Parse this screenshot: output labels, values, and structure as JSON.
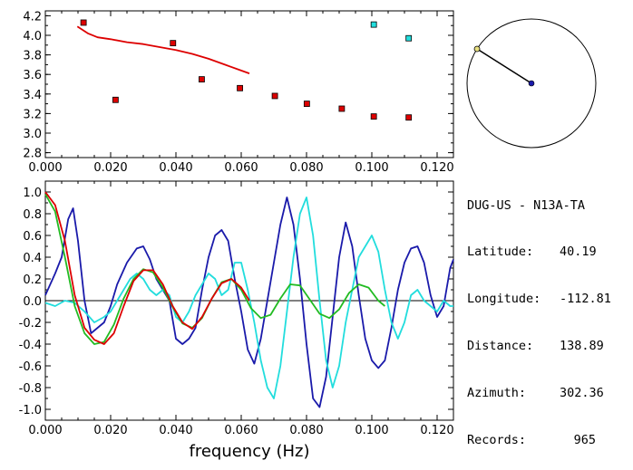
{
  "colors": {
    "red": "#dd0000",
    "blue": "#1a1aaa",
    "cyan": "#22dddd",
    "green": "#22bb22",
    "black": "#000000"
  },
  "station": {
    "title": "DUG-US - N13A-TA",
    "fields": [
      {
        "key": "Latitude:",
        "value": "40.19"
      },
      {
        "key": "Longitude:",
        "value": "-112.81"
      },
      {
        "key": "Distance:",
        "value": "138.89"
      },
      {
        "key": "Azimuth:",
        "value": "302.36"
      },
      {
        "key": "Records:",
        "value": "965"
      }
    ]
  },
  "azimuth_deg": 302.36,
  "chart_data": [
    {
      "type": "scatter",
      "xlim": [
        0.0,
        0.125
      ],
      "ylim": [
        2.75,
        4.25
      ],
      "xticks": [
        "0.000",
        "0.020",
        "0.040",
        "0.060",
        "0.080",
        "0.100",
        "0.120"
      ],
      "yticks": [
        "2.8",
        "3.0",
        "3.2",
        "3.4",
        "3.6",
        "3.8",
        "4.0",
        "4.2"
      ],
      "series": [
        {
          "color": "#dd0000",
          "marker": "square",
          "x": [
            0.0117,
            0.0215,
            0.0391,
            0.0479,
            0.0596,
            0.0703,
            0.0801,
            0.0908,
            0.1006,
            0.1113
          ],
          "y": [
            4.13,
            3.34,
            3.92,
            3.55,
            3.46,
            3.38,
            3.3,
            3.25,
            3.17,
            3.16
          ]
        },
        {
          "color": "#22dddd",
          "marker": "square",
          "x": [
            0.1006,
            0.1113
          ],
          "y": [
            4.11,
            3.97
          ]
        },
        {
          "color": "#dd0000",
          "marker": "line",
          "x": [
            0.0098,
            0.013,
            0.016,
            0.02,
            0.025,
            0.03,
            0.035,
            0.04,
            0.045,
            0.05,
            0.055,
            0.06,
            0.0625
          ],
          "y": [
            4.09,
            4.02,
            3.98,
            3.96,
            3.93,
            3.91,
            3.88,
            3.85,
            3.81,
            3.76,
            3.7,
            3.64,
            3.61
          ]
        }
      ]
    },
    {
      "type": "line",
      "xlabel": "frequency (Hz)",
      "xlim": [
        0.0,
        0.125
      ],
      "ylim": [
        -1.1,
        1.1
      ],
      "xticks": [
        "0.000",
        "0.020",
        "0.040",
        "0.060",
        "0.080",
        "0.100",
        "0.120"
      ],
      "yticks": [
        "1.0",
        "0.8",
        "0.6",
        "0.4",
        "0.2",
        "0.0",
        "-0.2",
        "-0.4",
        "-0.6",
        "-0.8",
        "-1.0"
      ],
      "series": [
        {
          "color": "#000000",
          "x": [
            0.0,
            0.125
          ],
          "y": [
            0.0,
            0.0
          ]
        },
        {
          "color": "#1a1aaa",
          "x": [
            0.0,
            0.003,
            0.005,
            0.007,
            0.0085,
            0.01,
            0.012,
            0.014,
            0.016,
            0.018,
            0.02,
            0.022,
            0.025,
            0.028,
            0.03,
            0.032,
            0.034,
            0.036,
            0.038,
            0.04,
            0.042,
            0.044,
            0.046,
            0.048,
            0.05,
            0.052,
            0.054,
            0.056,
            0.058,
            0.06,
            0.062,
            0.064,
            0.066,
            0.068,
            0.07,
            0.072,
            0.074,
            0.076,
            0.078,
            0.08,
            0.082,
            0.084,
            0.086,
            0.088,
            0.09,
            0.092,
            0.094,
            0.096,
            0.098,
            0.1,
            0.102,
            0.104,
            0.106,
            0.108,
            0.11,
            0.112,
            0.114,
            0.116,
            0.118,
            0.12,
            0.122,
            0.124,
            0.125
          ],
          "y": [
            0.05,
            0.25,
            0.4,
            0.75,
            0.85,
            0.55,
            0.0,
            -0.3,
            -0.25,
            -0.2,
            -0.05,
            0.15,
            0.35,
            0.48,
            0.5,
            0.38,
            0.2,
            0.1,
            0.0,
            -0.35,
            -0.4,
            -0.35,
            -0.25,
            0.1,
            0.4,
            0.6,
            0.65,
            0.55,
            0.2,
            -0.1,
            -0.45,
            -0.58,
            -0.35,
            0.0,
            0.35,
            0.7,
            0.95,
            0.7,
            0.2,
            -0.4,
            -0.9,
            -0.98,
            -0.7,
            -0.15,
            0.4,
            0.72,
            0.5,
            0.05,
            -0.35,
            -0.55,
            -0.62,
            -0.55,
            -0.25,
            0.1,
            0.35,
            0.48,
            0.5,
            0.35,
            0.05,
            -0.15,
            -0.05,
            0.3,
            0.38
          ]
        },
        {
          "color": "#22dddd",
          "x": [
            0.0,
            0.003,
            0.006,
            0.009,
            0.012,
            0.015,
            0.018,
            0.02,
            0.022,
            0.024,
            0.026,
            0.028,
            0.03,
            0.032,
            0.034,
            0.036,
            0.038,
            0.04,
            0.042,
            0.044,
            0.046,
            0.048,
            0.05,
            0.052,
            0.054,
            0.056,
            0.058,
            0.06,
            0.062,
            0.064,
            0.066,
            0.068,
            0.07,
            0.072,
            0.074,
            0.076,
            0.078,
            0.08,
            0.082,
            0.084,
            0.086,
            0.088,
            0.09,
            0.092,
            0.094,
            0.096,
            0.098,
            0.1,
            0.102,
            0.104,
            0.106,
            0.108,
            0.11,
            0.112,
            0.114,
            0.116,
            0.118,
            0.12,
            0.122,
            0.124,
            0.125
          ],
          "y": [
            -0.02,
            -0.05,
            0.0,
            -0.02,
            -0.1,
            -0.2,
            -0.15,
            -0.1,
            0.0,
            0.1,
            0.2,
            0.25,
            0.2,
            0.1,
            0.05,
            0.1,
            0.05,
            -0.15,
            -0.2,
            -0.1,
            0.05,
            0.15,
            0.25,
            0.2,
            0.05,
            0.1,
            0.35,
            0.35,
            0.1,
            -0.2,
            -0.55,
            -0.8,
            -0.9,
            -0.6,
            -0.1,
            0.4,
            0.8,
            0.95,
            0.6,
            0.0,
            -0.55,
            -0.8,
            -0.6,
            -0.2,
            0.1,
            0.4,
            0.5,
            0.6,
            0.45,
            0.1,
            -0.2,
            -0.35,
            -0.2,
            0.05,
            0.1,
            0.0,
            -0.05,
            -0.1,
            0.0,
            -0.05,
            -0.05
          ]
        },
        {
          "color": "#22bb22",
          "x": [
            0.0,
            0.003,
            0.006,
            0.009,
            0.012,
            0.015,
            0.018,
            0.021,
            0.024,
            0.027,
            0.03,
            0.033,
            0.036,
            0.039,
            0.042,
            0.045,
            0.048,
            0.051,
            0.054,
            0.057,
            0.06,
            0.063,
            0.066,
            0.069,
            0.072,
            0.075,
            0.078,
            0.081,
            0.084,
            0.087,
            0.09,
            0.093,
            0.096,
            0.099,
            0.102,
            0.104
          ],
          "y": [
            0.98,
            0.82,
            0.4,
            -0.05,
            -0.3,
            -0.4,
            -0.38,
            -0.22,
            0.02,
            0.2,
            0.29,
            0.26,
            0.12,
            -0.06,
            -0.21,
            -0.25,
            -0.16,
            0.02,
            0.17,
            0.2,
            0.1,
            -0.07,
            -0.16,
            -0.13,
            0.02,
            0.15,
            0.14,
            0.01,
            -0.12,
            -0.16,
            -0.08,
            0.07,
            0.15,
            0.12,
            0.0,
            -0.05
          ]
        },
        {
          "color": "#dd0000",
          "x": [
            0.0,
            0.003,
            0.006,
            0.009,
            0.012,
            0.015,
            0.018,
            0.021,
            0.024,
            0.027,
            0.03,
            0.033,
            0.036,
            0.039,
            0.042,
            0.045,
            0.048,
            0.051,
            0.054,
            0.057,
            0.06,
            0.0625
          ],
          "y": [
            1.0,
            0.88,
            0.55,
            0.05,
            -0.25,
            -0.36,
            -0.4,
            -0.3,
            -0.05,
            0.18,
            0.28,
            0.28,
            0.15,
            -0.05,
            -0.2,
            -0.26,
            -0.15,
            0.02,
            0.16,
            0.2,
            0.12,
            0.0
          ]
        }
      ]
    }
  ]
}
